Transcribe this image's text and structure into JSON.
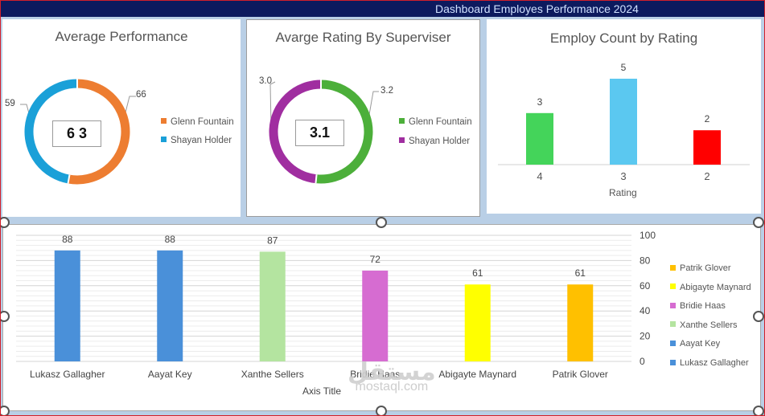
{
  "header": {
    "title": "Dashboard Employes Performance 2024"
  },
  "panel1": {
    "title": "Average Performance",
    "center_value": "6 3",
    "labels": {
      "left": "59",
      "right": "66"
    },
    "legend": [
      {
        "name": "Glenn Fountain",
        "color": "#ed7d31"
      },
      {
        "name": "Shayan Holder",
        "color": "#1aa0d8"
      }
    ],
    "chart_data": {
      "type": "pie",
      "donut": true,
      "series": [
        {
          "name": "Glenn Fountain",
          "value": 66,
          "color": "#ed7d31"
        },
        {
          "name": "Shayan Holder",
          "value": 59,
          "color": "#1aa0d8"
        }
      ]
    }
  },
  "panel2": {
    "title": "Avarge Rating By Superviser",
    "center_value": "3.1",
    "labels": {
      "left": "3.0",
      "right": "3.2"
    },
    "legend": [
      {
        "name": "Glenn Fountain",
        "color": "#4caf3a"
      },
      {
        "name": "Shayan Holder",
        "color": "#a02ea0"
      }
    ],
    "chart_data": {
      "type": "pie",
      "donut": true,
      "series": [
        {
          "name": "Glenn Fountain",
          "value": 3.2,
          "color": "#4caf3a"
        },
        {
          "name": "Shayan Holder",
          "value": 3.0,
          "color": "#a02ea0"
        }
      ]
    }
  },
  "panel3": {
    "title": "Employ Count by Rating",
    "xlabel": "Rating",
    "chart_data": {
      "type": "bar",
      "categories": [
        "4",
        "3",
        "2"
      ],
      "values": [
        3,
        5,
        2
      ],
      "colors": [
        "#44d45a",
        "#5bc8f0",
        "#ff0000"
      ],
      "xlabel": "Rating",
      "ylim": [
        0,
        5
      ]
    }
  },
  "panel4": {
    "xlabel": "Axis Title",
    "legend": [
      {
        "name": "Patrik Glover",
        "color": "#ffc000"
      },
      {
        "name": "Abigayte Maynard",
        "color": "#ffff00"
      },
      {
        "name": "Bridie Haas",
        "color": "#d66cd1"
      },
      {
        "name": "Xanthe Sellers",
        "color": "#b4e4a0"
      },
      {
        "name": "Aayat Key",
        "color": "#4a90d9"
      },
      {
        "name": "Lukasz Gallagher",
        "color": "#4a90d9"
      }
    ],
    "chart_data": {
      "type": "bar",
      "categories": [
        "Lukasz Gallagher",
        "Aayat Key",
        "Xanthe Sellers",
        "Bridie Haas",
        "Abigayte Maynard",
        "Patrik Glover"
      ],
      "values": [
        88,
        88,
        87,
        72,
        61,
        61
      ],
      "colors": [
        "#4a90d9",
        "#4a90d9",
        "#b4e4a0",
        "#d66cd1",
        "#ffff00",
        "#ffc000"
      ],
      "ylim": [
        0,
        100
      ],
      "yticks": [
        0,
        20,
        40,
        60,
        80,
        100
      ],
      "xlabel": "Axis Title"
    }
  },
  "watermark": {
    "arabic": "مستقل",
    "latin": "mostaql.com"
  }
}
